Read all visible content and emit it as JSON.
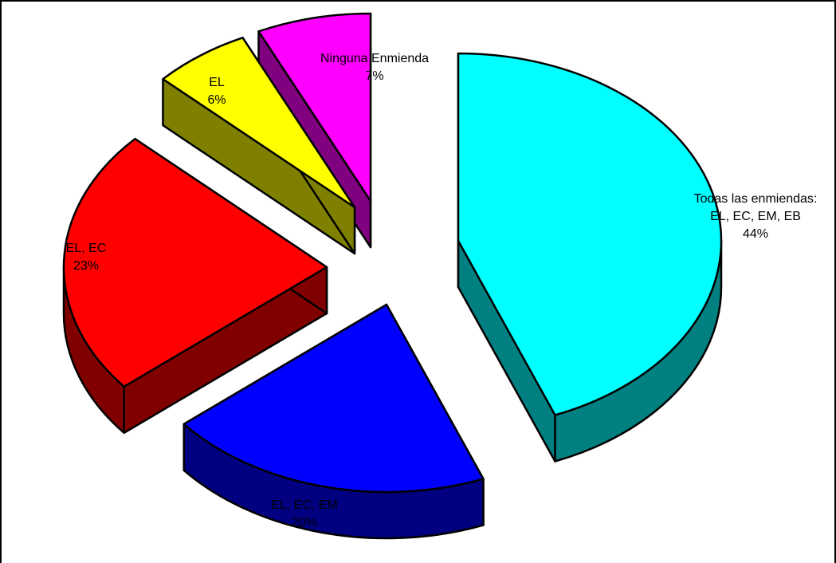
{
  "chart_data": {
    "type": "pie",
    "style": "3d-exploded",
    "legend": "none",
    "slices": [
      {
        "name": "Todas las enmiendas: EL, EC, EM, EB",
        "label_lines": [
          "Todas las enmiendas:",
          "EL, EC, EM, EB"
        ],
        "value_label": "44%",
        "value": 44,
        "color": "#00ffff",
        "side_color": "#008080"
      },
      {
        "name": "EL, EC, EM",
        "label_lines": [
          "EL, EC, EM"
        ],
        "value_label": "20%",
        "value": 20,
        "color": "#0000ff",
        "side_color": "#000080"
      },
      {
        "name": "EL, EC",
        "label_lines": [
          "EL, EC"
        ],
        "value_label": "23%",
        "value": 23,
        "color": "#ff0000",
        "side_color": "#800000"
      },
      {
        "name": "EL",
        "label_lines": [
          "EL"
        ],
        "value_label": "6%",
        "value": 6,
        "color": "#ffff00",
        "side_color": "#808000"
      },
      {
        "name": "Ninguna Enmienda",
        "label_lines": [
          "Ninguna Enmienda"
        ],
        "value_label": "7%",
        "value": 7,
        "color": "#ff00ff",
        "side_color": "#800080"
      }
    ]
  }
}
